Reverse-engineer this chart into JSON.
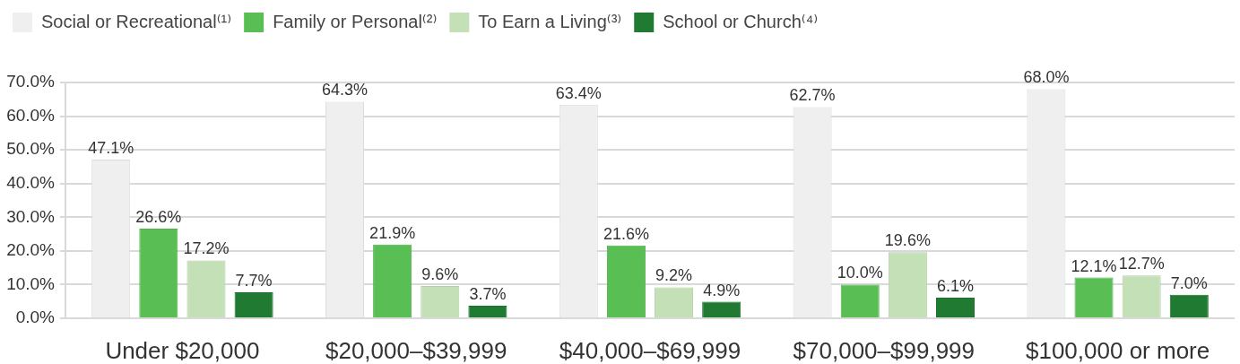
{
  "chart_data": {
    "type": "bar",
    "categories": [
      "Under $20,000",
      "$20,000–$39,999",
      "$40,000–$69,999",
      "$70,000–$99,999",
      "$100,000 or more"
    ],
    "series": [
      {
        "name": "Social or Recreational⁽¹⁾",
        "color": "#efefef",
        "values": [
          47.1,
          64.3,
          63.4,
          62.7,
          68.0
        ],
        "value_labels": [
          "47.1%",
          "64.3%",
          "63.4%",
          "62.7%",
          "68.0%"
        ]
      },
      {
        "name": "Family or Personal⁽²⁾",
        "color": "#59bf55",
        "values": [
          26.6,
          21.9,
          21.6,
          10.0,
          12.1
        ],
        "value_labels": [
          "26.6%",
          "21.9%",
          "21.6%",
          "10.0%",
          "12.1%"
        ]
      },
      {
        "name": "To Earn a Living⁽³⁾",
        "color": "#c3e0b7",
        "values": [
          17.2,
          9.6,
          9.2,
          19.6,
          12.7
        ],
        "value_labels": [
          "17.2%",
          "9.6%",
          "9.2%",
          "19.6%",
          "12.7%"
        ]
      },
      {
        "name": "School or Church⁽⁴⁾",
        "color": "#217a31",
        "values": [
          7.7,
          3.7,
          4.9,
          6.1,
          7.0
        ],
        "value_labels": [
          "7.7%",
          "3.7%",
          "4.9%",
          "6.1%",
          "7.0%"
        ]
      }
    ],
    "ylim": [
      0,
      70
    ],
    "yticks": [
      {
        "value": 0,
        "label": "0.0%"
      },
      {
        "value": 10,
        "label": "10.0%"
      },
      {
        "value": 20,
        "label": "20.0%"
      },
      {
        "value": 30,
        "label": "30.0%"
      },
      {
        "value": 40,
        "label": "40.0%"
      },
      {
        "value": 50,
        "label": "50.0%"
      },
      {
        "value": 60,
        "label": "60.0%"
      },
      {
        "value": 70,
        "label": "70.0%"
      }
    ],
    "grid": "y",
    "legend": "top left"
  }
}
